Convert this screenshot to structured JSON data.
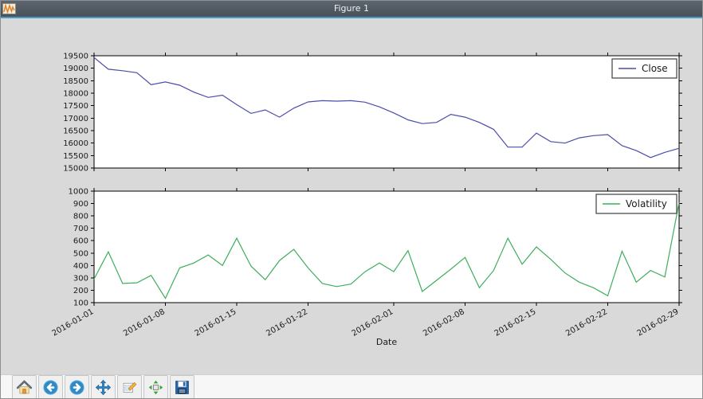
{
  "window": {
    "title": "Figure 1"
  },
  "titlebar_icon": "matplotlib-window-icon",
  "toolbar": {
    "buttons": [
      {
        "name": "home-icon"
      },
      {
        "name": "back-icon"
      },
      {
        "name": "forward-icon"
      },
      {
        "name": "pan-icon"
      },
      {
        "name": "zoom-to-rect-icon"
      },
      {
        "name": "configure-subplots-icon"
      },
      {
        "name": "save-icon"
      }
    ]
  },
  "chart_data": [
    {
      "type": "line",
      "x": [
        "2016-01-01",
        "2016-01-04",
        "2016-01-05",
        "2016-01-06",
        "2016-01-07",
        "2016-01-08",
        "2016-01-11",
        "2016-01-12",
        "2016-01-13",
        "2016-01-14",
        "2016-01-15",
        "2016-01-18",
        "2016-01-19",
        "2016-01-20",
        "2016-01-21",
        "2016-01-22",
        "2016-01-25",
        "2016-01-26",
        "2016-01-27",
        "2016-01-28",
        "2016-01-29",
        "2016-02-01",
        "2016-02-02",
        "2016-02-03",
        "2016-02-04",
        "2016-02-05",
        "2016-02-08",
        "2016-02-09",
        "2016-02-10",
        "2016-02-11",
        "2016-02-12",
        "2016-02-15",
        "2016-02-16",
        "2016-02-17",
        "2016-02-18",
        "2016-02-19",
        "2016-02-22",
        "2016-02-23",
        "2016-02-24",
        "2016-02-25",
        "2016-02-26",
        "2016-02-29"
      ],
      "series": [
        {
          "name": "Close",
          "color": "#4c4cab",
          "values": [
            19430,
            18960,
            18900,
            18820,
            18340,
            18450,
            18320,
            18040,
            17830,
            17920,
            17540,
            17190,
            17330,
            17040,
            17400,
            17650,
            17700,
            17680,
            17700,
            17640,
            17450,
            17210,
            16930,
            16780,
            16830,
            17150,
            17040,
            16830,
            16550,
            15840,
            15840,
            16400,
            16060,
            16000,
            16210,
            16300,
            16340,
            15900,
            15700,
            15420,
            15630,
            15790
          ]
        }
      ],
      "ylim": [
        15000,
        19500
      ],
      "yticks": [
        15000,
        15500,
        16000,
        16500,
        17000,
        17500,
        18000,
        18500,
        19000,
        19500
      ],
      "x_tick_indices": [
        0,
        5,
        10,
        15,
        21,
        26,
        31,
        36,
        41
      ],
      "x_tick_labels": [
        "2016-01-01",
        "2016-01-08",
        "2016-01-15",
        "2016-01-22",
        "2016-02-01",
        "2016-02-08",
        "2016-02-15",
        "2016-02-22",
        "2016-02-29"
      ],
      "show_x_tick_labels": false,
      "xlabel": "",
      "legend": {
        "label": "Close",
        "position": "upper right"
      },
      "grid": false
    },
    {
      "type": "line",
      "x": [
        "2016-01-01",
        "2016-01-04",
        "2016-01-05",
        "2016-01-06",
        "2016-01-07",
        "2016-01-08",
        "2016-01-11",
        "2016-01-12",
        "2016-01-13",
        "2016-01-14",
        "2016-01-15",
        "2016-01-18",
        "2016-01-19",
        "2016-01-20",
        "2016-01-21",
        "2016-01-22",
        "2016-01-25",
        "2016-01-26",
        "2016-01-27",
        "2016-01-28",
        "2016-01-29",
        "2016-02-01",
        "2016-02-02",
        "2016-02-03",
        "2016-02-04",
        "2016-02-05",
        "2016-02-08",
        "2016-02-09",
        "2016-02-10",
        "2016-02-11",
        "2016-02-12",
        "2016-02-15",
        "2016-02-16",
        "2016-02-17",
        "2016-02-18",
        "2016-02-19",
        "2016-02-22",
        "2016-02-23",
        "2016-02-24",
        "2016-02-25",
        "2016-02-26",
        "2016-02-29"
      ],
      "series": [
        {
          "name": "Volatility",
          "color": "#3fae5c",
          "values": [
            290,
            510,
            255,
            260,
            320,
            135,
            380,
            420,
            485,
            400,
            620,
            395,
            285,
            440,
            530,
            380,
            255,
            230,
            250,
            350,
            420,
            350,
            520,
            190,
            280,
            370,
            465,
            220,
            360,
            620,
            410,
            550,
            450,
            340,
            265,
            220,
            155,
            515,
            265,
            360,
            307,
            907
          ]
        }
      ],
      "ylim": [
        100,
        1000
      ],
      "yticks": [
        100,
        200,
        300,
        400,
        500,
        600,
        700,
        800,
        900,
        1000
      ],
      "x_tick_indices": [
        0,
        5,
        10,
        15,
        21,
        26,
        31,
        36,
        41
      ],
      "x_tick_labels": [
        "2016-01-01",
        "2016-01-08",
        "2016-01-15",
        "2016-01-22",
        "2016-02-01",
        "2016-02-08",
        "2016-02-15",
        "2016-02-22",
        "2016-02-29"
      ],
      "show_x_tick_labels": true,
      "xlabel": "Date",
      "legend": {
        "label": "Volatility",
        "position": "upper right"
      },
      "grid": false
    }
  ]
}
